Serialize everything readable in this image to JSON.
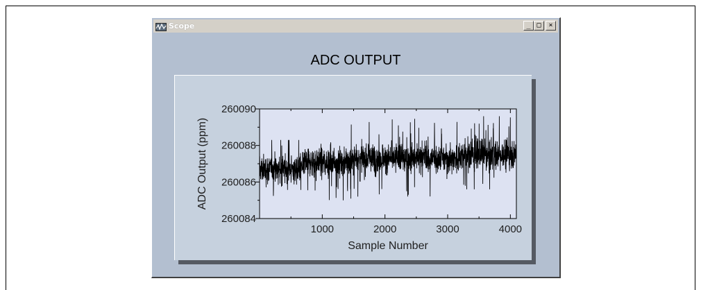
{
  "window": {
    "title": "Scope",
    "icon": "scope-app-icon",
    "buttons": {
      "minimize": "_",
      "maximize": "□",
      "close": "×"
    }
  },
  "chart_data": {
    "type": "line",
    "title": "ADC OUTPUT",
    "xlabel": "Sample Number",
    "ylabel": "ADC Output (ppm)",
    "xlim": [
      0,
      4096
    ],
    "ylim": [
      260084,
      260090
    ],
    "xticks": [
      1000,
      2000,
      3000,
      4000
    ],
    "yticks": [
      260084,
      260086,
      260088,
      260090
    ],
    "grid": false,
    "series": [
      {
        "samples": 4096,
        "color": "#000000",
        "segments": [
          {
            "x_start": 0,
            "x_end": 700,
            "mean": 260086.7,
            "min": 260084.7,
            "max": 260088.3
          },
          {
            "x_start": 700,
            "x_end": 1500,
            "mean": 260087.1,
            "min": 260085.0,
            "max": 260089.3
          },
          {
            "x_start": 1500,
            "x_end": 3200,
            "mean": 260087.3,
            "min": 260085.2,
            "max": 260089.8
          },
          {
            "x_start": 3200,
            "x_end": 4096,
            "mean": 260087.5,
            "min": 260085.6,
            "max": 260089.6
          }
        ]
      }
    ]
  },
  "colors": {
    "window_bg": "#b3bfd0",
    "plot_panel_bg": "#c6d1de",
    "plot_area_bg": "#dde2f2",
    "trace": "#000000"
  }
}
